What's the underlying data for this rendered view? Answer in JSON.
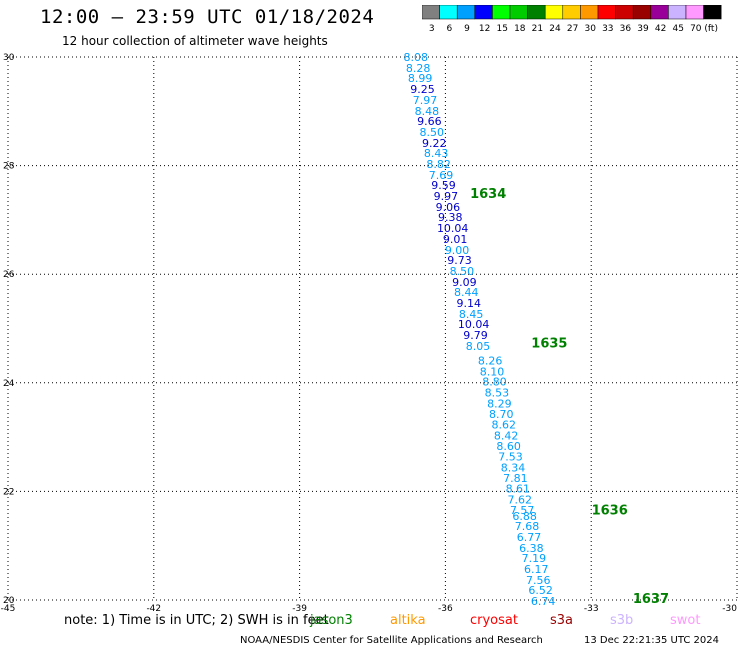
{
  "header": {
    "title": "12:00 – 23:59 UTC 01/18/2024",
    "subtitle": "12 hour collection of altimeter wave heights"
  },
  "colorbar": {
    "unit": "(ft)",
    "bins": [
      {
        "label": "3",
        "color": "#808080"
      },
      {
        "label": "6",
        "color": "#00ffff"
      },
      {
        "label": "9",
        "color": "#00a0ff"
      },
      {
        "label": "12",
        "color": "#0000ff"
      },
      {
        "label": "15",
        "color": "#00ff00"
      },
      {
        "label": "18",
        "color": "#00cc00"
      },
      {
        "label": "21",
        "color": "#008000"
      },
      {
        "label": "24",
        "color": "#ffff00"
      },
      {
        "label": "27",
        "color": "#ffcc00"
      },
      {
        "label": "30",
        "color": "#ff9900"
      },
      {
        "label": "33",
        "color": "#ff0000"
      },
      {
        "label": "36",
        "color": "#cc0000"
      },
      {
        "label": "39",
        "color": "#990000"
      },
      {
        "label": "42",
        "color": "#990099"
      },
      {
        "label": "45",
        "color": "#ccb3ff"
      },
      {
        "label": "70",
        "color": "#ff99ff"
      },
      {
        "label": "",
        "color": "#000000"
      }
    ]
  },
  "chart_data": {
    "type": "scatter",
    "title": "12:00 – 23:59 UTC 01/18/2024",
    "subtitle": "12 hour collection of altimeter wave heights",
    "xlim": [
      -45,
      -30
    ],
    "ylim": [
      20,
      30
    ],
    "x_ticks": [
      -45,
      -42,
      -39,
      -36,
      -33,
      -30
    ],
    "x_tick_labels": [
      "-45",
      "-42",
      "-39",
      "-36",
      "-33",
      "-30"
    ],
    "y_ticks": [
      20,
      22,
      24,
      26,
      28,
      30
    ],
    "y_tick_labels": [
      "20",
      "22",
      "24",
      "26",
      "28",
      "30"
    ],
    "grid": true,
    "unit": "ft",
    "points": [
      {
        "lon": -36.61,
        "lat": 30.0,
        "label": "8.08",
        "color": "#00a0ff"
      },
      {
        "lon": -36.56,
        "lat": 29.8,
        "label": "8.28",
        "color": "#00a0ff"
      },
      {
        "lon": -36.52,
        "lat": 29.61,
        "label": "8.99",
        "color": "#00a0ff"
      },
      {
        "lon": -36.47,
        "lat": 29.41,
        "label": "9.25",
        "color": "#0000cc"
      },
      {
        "lon": -36.42,
        "lat": 29.21,
        "label": "7.97",
        "color": "#00a0ff"
      },
      {
        "lon": -36.38,
        "lat": 29.01,
        "label": "8.48",
        "color": "#00a0ff"
      },
      {
        "lon": -36.33,
        "lat": 28.82,
        "label": "9.66",
        "color": "#0000cc"
      },
      {
        "lon": -36.28,
        "lat": 28.62,
        "label": "8.50",
        "color": "#00a0ff"
      },
      {
        "lon": -36.23,
        "lat": 28.42,
        "label": "9.22",
        "color": "#0000cc"
      },
      {
        "lon": -36.19,
        "lat": 28.23,
        "label": "8.43",
        "color": "#00a0ff"
      },
      {
        "lon": -36.14,
        "lat": 28.03,
        "label": "8.82",
        "color": "#00a0ff"
      },
      {
        "lon": -36.09,
        "lat": 27.83,
        "label": "7.69",
        "color": "#00a0ff"
      },
      {
        "lon": -36.04,
        "lat": 27.64,
        "label": "9.59",
        "color": "#0000cc"
      },
      {
        "lon": -35.99,
        "lat": 27.44,
        "label": "9.97",
        "color": "#0000cc"
      },
      {
        "lon": -35.95,
        "lat": 27.24,
        "label": "9.06",
        "color": "#0000cc"
      },
      {
        "lon": -35.9,
        "lat": 27.05,
        "label": "9.38",
        "color": "#0000cc"
      },
      {
        "lon": -35.85,
        "lat": 26.85,
        "label": "10.04",
        "color": "#0000cc"
      },
      {
        "lon": -35.8,
        "lat": 26.65,
        "label": "9.01",
        "color": "#0000cc"
      },
      {
        "lon": -35.76,
        "lat": 26.45,
        "label": "9.00",
        "color": "#00a0ff"
      },
      {
        "lon": -35.71,
        "lat": 26.26,
        "label": "9.73",
        "color": "#0000cc"
      },
      {
        "lon": -35.66,
        "lat": 26.06,
        "label": "8.50",
        "color": "#00a0ff"
      },
      {
        "lon": -35.61,
        "lat": 25.86,
        "label": "9.09",
        "color": "#0000cc"
      },
      {
        "lon": -35.57,
        "lat": 25.67,
        "label": "8.44",
        "color": "#00a0ff"
      },
      {
        "lon": -35.52,
        "lat": 25.47,
        "label": "9.14",
        "color": "#0000cc"
      },
      {
        "lon": -35.47,
        "lat": 25.27,
        "label": "8.45",
        "color": "#00a0ff"
      },
      {
        "lon": -35.42,
        "lat": 25.08,
        "label": "10.04",
        "color": "#0000cc"
      },
      {
        "lon": -35.38,
        "lat": 24.88,
        "label": "9.79",
        "color": "#0000cc"
      },
      {
        "lon": -35.33,
        "lat": 24.68,
        "label": "8.05",
        "color": "#00a0ff"
      },
      {
        "lon": -35.08,
        "lat": 24.41,
        "label": "8.26",
        "color": "#00a0ff"
      },
      {
        "lon": -35.04,
        "lat": 24.21,
        "label": "8.10",
        "color": "#00a0ff"
      },
      {
        "lon": -34.99,
        "lat": 24.02,
        "label": "8.80",
        "color": "#00a0ff"
      },
      {
        "lon": -34.94,
        "lat": 23.82,
        "label": "8.53",
        "color": "#00a0ff"
      },
      {
        "lon": -34.89,
        "lat": 23.62,
        "label": "8.29",
        "color": "#00a0ff"
      },
      {
        "lon": -34.85,
        "lat": 23.43,
        "label": "8.70",
        "color": "#00a0ff"
      },
      {
        "lon": -34.8,
        "lat": 23.23,
        "label": "8.62",
        "color": "#00a0ff"
      },
      {
        "lon": -34.75,
        "lat": 23.03,
        "label": "8.42",
        "color": "#00a0ff"
      },
      {
        "lon": -34.7,
        "lat": 22.84,
        "label": "8.60",
        "color": "#00a0ff"
      },
      {
        "lon": -34.66,
        "lat": 22.64,
        "label": "7.53",
        "color": "#00a0ff"
      },
      {
        "lon": -34.61,
        "lat": 22.44,
        "label": "8.34",
        "color": "#00a0ff"
      },
      {
        "lon": -34.56,
        "lat": 22.25,
        "label": "7.81",
        "color": "#00a0ff"
      },
      {
        "lon": -34.51,
        "lat": 22.05,
        "label": "8.61",
        "color": "#00a0ff"
      },
      {
        "lon": -34.47,
        "lat": 21.85,
        "label": "7.62",
        "color": "#00a0ff"
      },
      {
        "lon": -34.42,
        "lat": 21.66,
        "label": "7.57",
        "color": "#00a0ff"
      },
      {
        "lon": -34.37,
        "lat": 21.55,
        "label": "6.88",
        "color": "#00a0ff"
      },
      {
        "lon": -34.32,
        "lat": 21.36,
        "label": "7.68",
        "color": "#00a0ff"
      },
      {
        "lon": -34.28,
        "lat": 21.16,
        "label": "6.77",
        "color": "#00a0ff"
      },
      {
        "lon": -34.23,
        "lat": 20.96,
        "label": "6.38",
        "color": "#00a0ff"
      },
      {
        "lon": -34.18,
        "lat": 20.77,
        "label": "7.19",
        "color": "#00a0ff"
      },
      {
        "lon": -34.13,
        "lat": 20.57,
        "label": "6.17",
        "color": "#00a0ff"
      },
      {
        "lon": -34.09,
        "lat": 20.37,
        "label": "7.56",
        "color": "#00a0ff"
      },
      {
        "lon": -34.04,
        "lat": 20.18,
        "label": "6.52",
        "color": "#00a0ff"
      },
      {
        "lon": -33.99,
        "lat": 19.98,
        "label": "6.74",
        "color": "#00a0ff"
      }
    ],
    "annotations": [
      {
        "lon": -35.12,
        "lat": 27.5,
        "text": "1634",
        "color": "#008000"
      },
      {
        "lon": -33.86,
        "lat": 24.74,
        "text": "1635",
        "color": "#008000"
      },
      {
        "lon": -32.62,
        "lat": 21.67,
        "text": "1636",
        "color": "#008000"
      },
      {
        "lon": -31.77,
        "lat": 20.04,
        "text": "1637",
        "color": "#008000"
      }
    ]
  },
  "footer": {
    "note": "note: 1) Time is in UTC; 2) SWH is in feet",
    "satellites": [
      {
        "name": "jason3",
        "color": "#008000"
      },
      {
        "name": "altika",
        "color": "#ff9900"
      },
      {
        "name": "cryosat",
        "color": "#ff0000"
      },
      {
        "name": "s3a",
        "color": "#990000"
      },
      {
        "name": "s3b",
        "color": "#ccb3ff"
      },
      {
        "name": "swot",
        "color": "#ff99ff"
      }
    ],
    "credit": "NOAA/NESDIS Center for Satellite Applications and Research",
    "timestamp": "13 Dec 22:21:35 UTC 2024"
  }
}
